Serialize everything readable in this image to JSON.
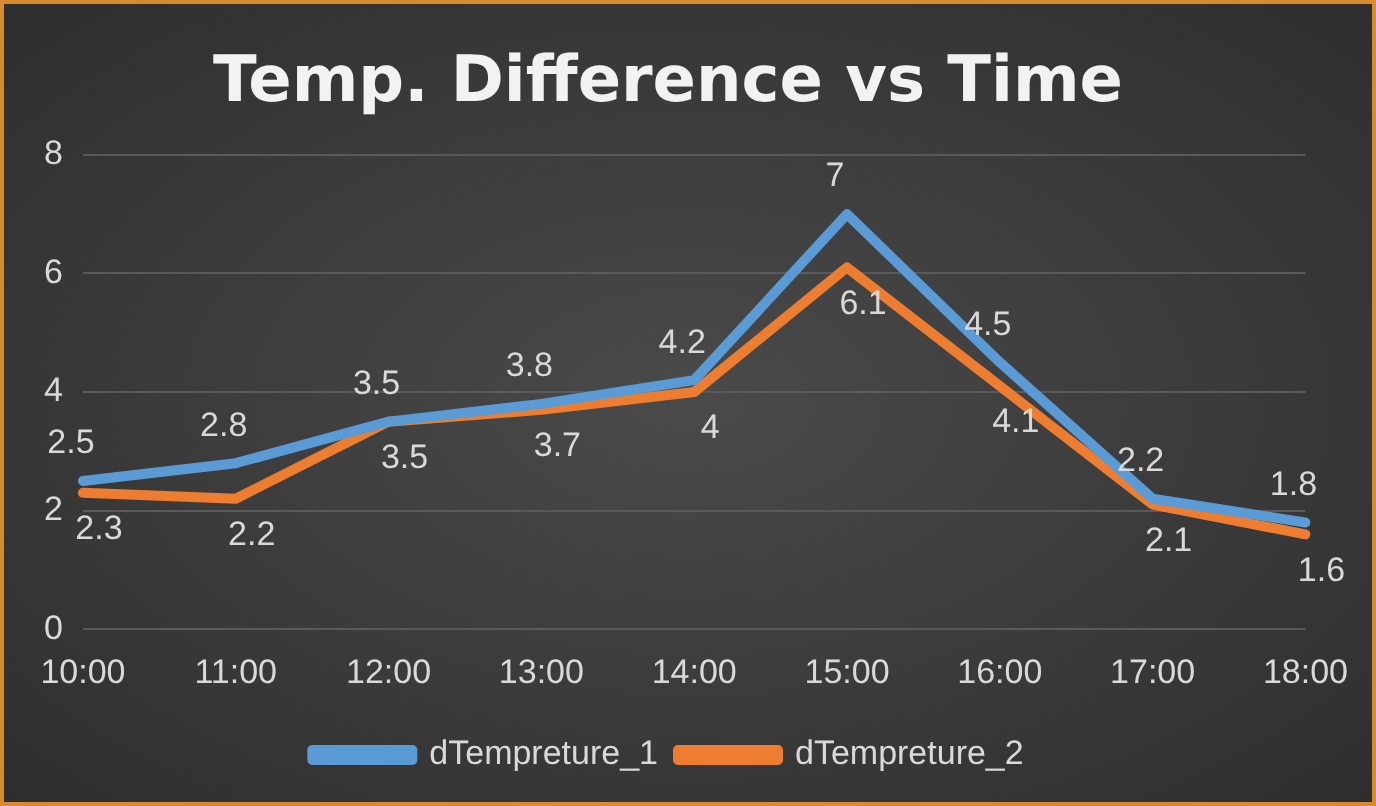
{
  "chart_data": {
    "type": "line",
    "title": "Temp. Difference vs Time",
    "categories": [
      "10:00",
      "11:00",
      "12:00",
      "13:00",
      "14:00",
      "15:00",
      "16:00",
      "17:00",
      "18:00"
    ],
    "series": [
      {
        "name": "dTempreture_1",
        "color": "#5b9bd5",
        "values": [
          2.5,
          2.8,
          3.5,
          3.8,
          4.2,
          7,
          4.5,
          2.2,
          1.8
        ]
      },
      {
        "name": "dTempreture_2",
        "color": "#ed7d31",
        "values": [
          2.3,
          2.2,
          3.5,
          3.7,
          4,
          6.1,
          4.1,
          2.1,
          1.6
        ]
      }
    ],
    "ylim": [
      0,
      8
    ],
    "yticks": [
      0,
      2,
      4,
      6,
      8
    ],
    "grid": "y",
    "legend": "bottom",
    "data_labels": true,
    "marker": "none",
    "line_style": "solid"
  }
}
